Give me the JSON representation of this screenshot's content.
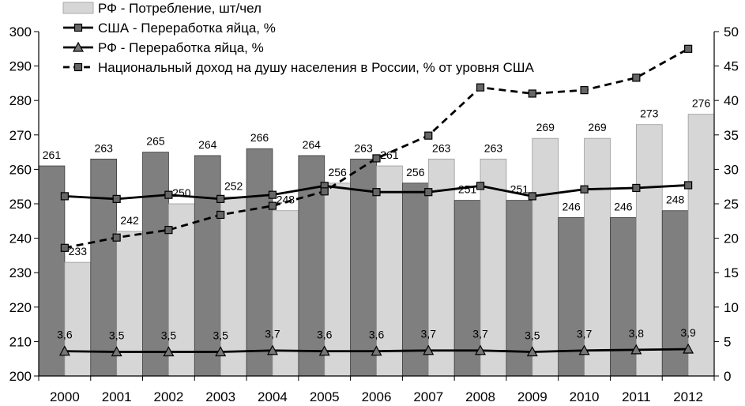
{
  "chart_data": {
    "type": "bar",
    "categories": [
      "2000",
      "2001",
      "2002",
      "2003",
      "2004",
      "2005",
      "2006",
      "2007",
      "2008",
      "2009",
      "2010",
      "2011",
      "2012"
    ],
    "series": [
      {
        "name": "РФ - Потребление, шт/чел",
        "kind": "bar",
        "axis": "left",
        "color": "#d6d6d6",
        "values": [
          233,
          242,
          250,
          252,
          248,
          256,
          261,
          263,
          263,
          269,
          269,
          273,
          276
        ],
        "labels": [
          "233",
          "242",
          "250",
          "252",
          "248",
          "256",
          "261",
          "263",
          "263",
          "269",
          "269",
          "273",
          "276"
        ]
      },
      {
        "name": "США - Переработка яйца, %",
        "kind": "line",
        "axis": "right",
        "marker": "square",
        "color": "#000000",
        "values": [
          26.1,
          25.7,
          26.3,
          25.7,
          26.3,
          27.6,
          26.7,
          26.7,
          27.6,
          26.1,
          27.1,
          27.3,
          27.7
        ]
      },
      {
        "name": "РФ - Переработка яйца, %",
        "kind": "line",
        "axis": "right",
        "marker": "triangle",
        "color": "#000000",
        "values": [
          3.6,
          3.5,
          3.5,
          3.5,
          3.7,
          3.6,
          3.6,
          3.7,
          3.7,
          3.5,
          3.7,
          3.8,
          3.9
        ],
        "labels": [
          "3,6",
          "3,5",
          "3,5",
          "3,5",
          "3,7",
          "3,6",
          "3,6",
          "3,7",
          "3,7",
          "3,5",
          "3,7",
          "3,8",
          "3,9"
        ]
      },
      {
        "name": "Национальный доход на душу населения в России, % от уровня США",
        "kind": "line",
        "axis": "right",
        "marker": "square",
        "dashed": true,
        "color": "#000000",
        "values": [
          18.6,
          20.1,
          21.2,
          23.4,
          24.7,
          26.8,
          31.6,
          34.9,
          41.9,
          41.0,
          41.5,
          43.3,
          47.5
        ]
      },
      {
        "name": "",
        "kind": "bar",
        "axis": "left",
        "color": "#7f7f7f",
        "values": [
          261,
          263,
          265,
          264,
          266,
          264,
          263,
          256,
          251,
          251,
          246,
          246,
          248
        ],
        "labels": [
          "261",
          "263",
          "265",
          "264",
          "266",
          "264",
          "263",
          "256",
          "251",
          "251",
          "246",
          "246",
          "248"
        ]
      }
    ],
    "left_axis": {
      "min": 200,
      "max": 300,
      "ticks": [
        "200",
        "210",
        "220",
        "230",
        "240",
        "250",
        "260",
        "270",
        "280",
        "290",
        "300"
      ]
    },
    "right_axis": {
      "min": 0,
      "max": 50,
      "ticks": [
        "0",
        "5",
        "10",
        "15",
        "20",
        "25",
        "30",
        "35",
        "40",
        "45",
        "50"
      ]
    },
    "grid": false,
    "legend_position": "top-left"
  }
}
